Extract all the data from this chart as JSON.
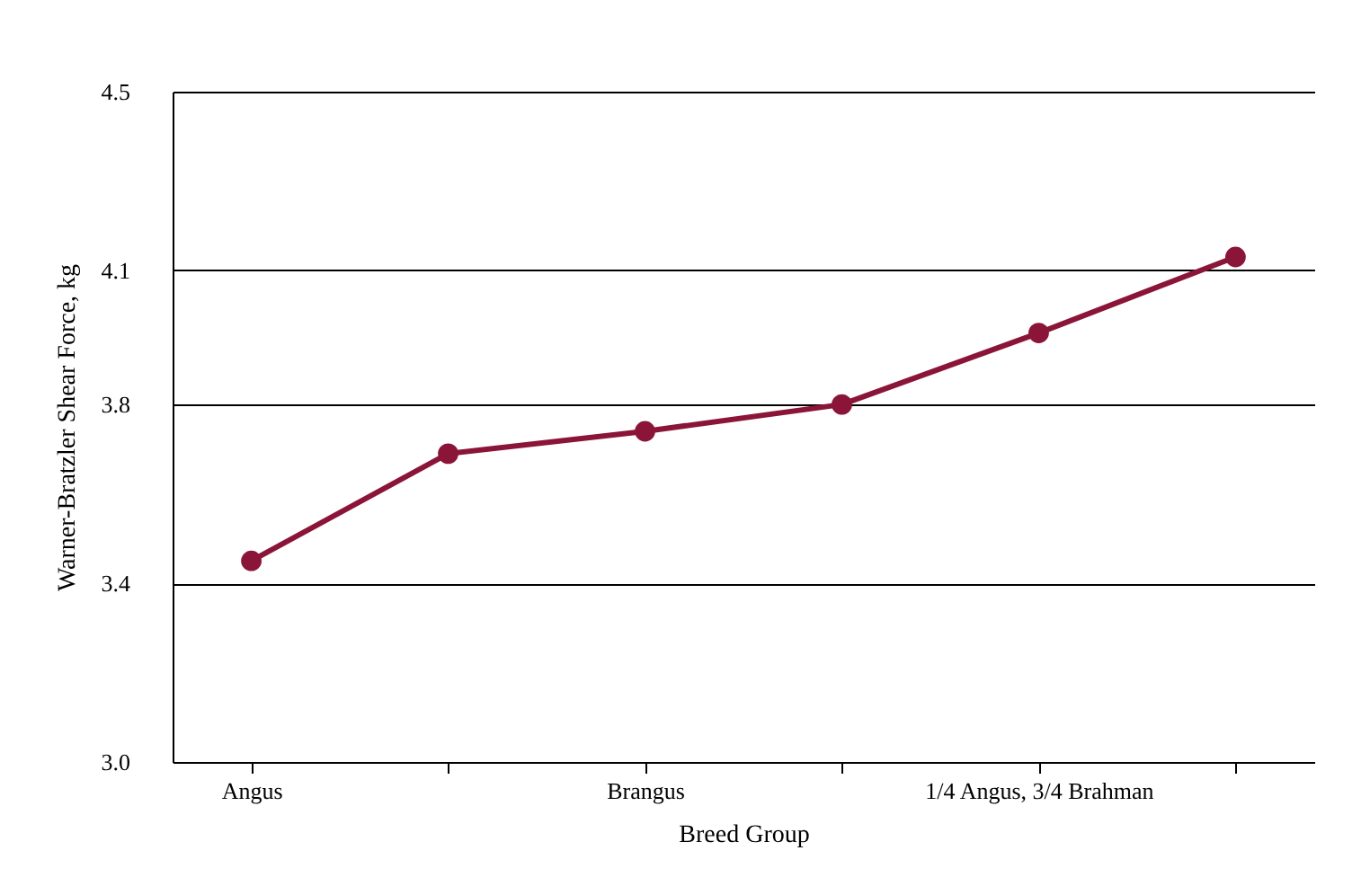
{
  "chart_data": {
    "type": "line",
    "xlabel": "Breed Group",
    "ylabel": "Warner-Bratzler Shear Force, kg",
    "categories": [
      "Angus",
      null,
      "Brangus",
      null,
      "1/4 Angus, 3/4 Brahman",
      null
    ],
    "series": [
      {
        "color": "#8b1538",
        "values": [
          3.45,
          3.69,
          3.74,
          3.8,
          3.96,
          4.13
        ]
      }
    ],
    "ylim": [
      3.0,
      4.5
    ],
    "yticks": [
      {
        "value": 3,
        "label": "3.0"
      },
      3.4,
      3.8,
      4.1,
      4.5
    ],
    "grid": "y",
    "marker": "circle",
    "line_style": "solid"
  }
}
